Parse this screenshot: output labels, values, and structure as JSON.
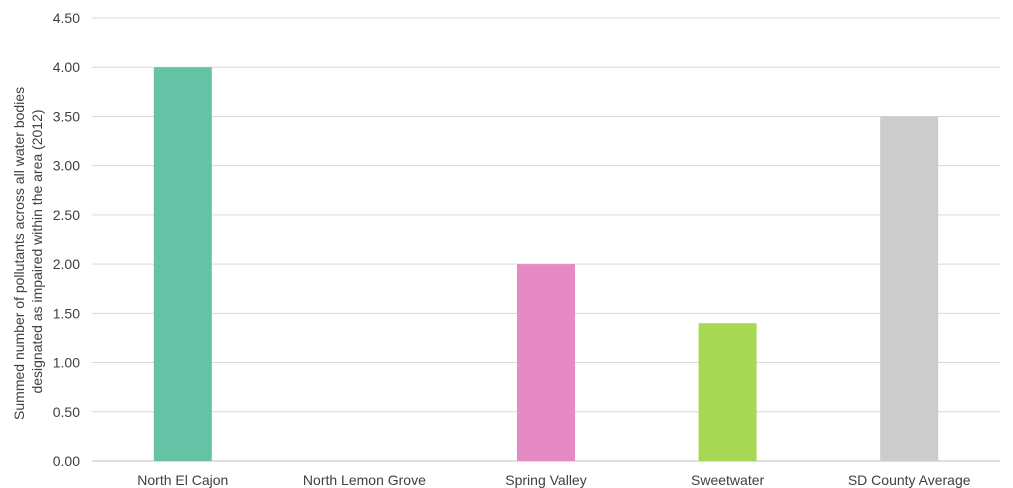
{
  "chart_data": {
    "type": "bar",
    "title": "",
    "xlabel": "",
    "ylabel_lines": [
      "Summed number of pollutants across all water bodies",
      "designated as impaired within the area (2012)"
    ],
    "categories": [
      "North El Cajon",
      "North Lemon Grove",
      "Spring Valley",
      "Sweetwater",
      "SD County Average"
    ],
    "values": [
      4.0,
      0,
      2.0,
      1.4,
      3.5
    ],
    "colors": [
      "#66c2a5",
      "#e78ac3",
      "#e78ac3",
      "#a6d854",
      "#cccccc"
    ],
    "bar_colors": {
      "North El Cajon": "#66c2a5",
      "Spring Valley": "#e78ac3",
      "Sweetwater": "#a6d854",
      "SD County Average": "#cccccc"
    },
    "ylim": [
      0,
      4.5
    ],
    "yticks": [
      "0.00",
      "0.50",
      "1.00",
      "1.50",
      "2.00",
      "2.50",
      "3.00",
      "3.50",
      "4.00",
      "4.50"
    ],
    "grid": true,
    "legend": "none"
  }
}
